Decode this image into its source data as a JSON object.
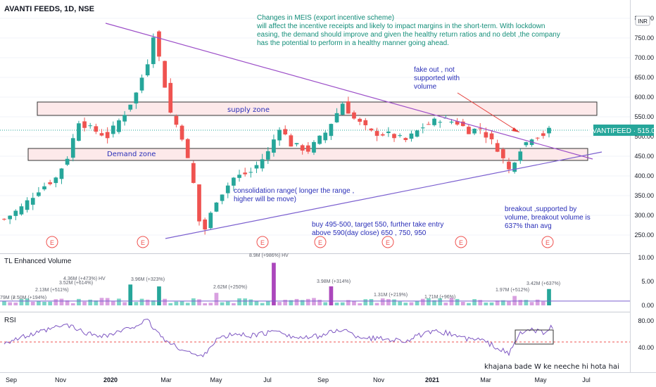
{
  "header": {
    "title": "AVANTI FEEDS, 1D, NSE",
    "currency": "INR"
  },
  "price_label": {
    "text": "AVANTIFEED · 515.00",
    "value": 515.0
  },
  "notes": {
    "meis": [
      "Changes in MEIS (export incentive scheme)",
      "will affect the incentive receipts and likely to impact margins in the short-term. With lockdown",
      "easing, the demand should improve and given the healthy return ratios and no debt ,the company",
      "has the potential to perform in a healthy manner going ahead."
    ],
    "fakeout": [
      "fake out , not",
      "supported with",
      "volume"
    ],
    "supply": "supply zone",
    "demand": "Demand zone",
    "consolidation": [
      "consolidation range( longer the range ,",
      "higher will be move)"
    ],
    "buy": [
      "buy 495-500, target 550, further take entry",
      "above 590(day close) 650 , 750, 950"
    ],
    "breakout": [
      "breakout ,supported by",
      "volume, breakout volume is",
      "637% than avg"
    ],
    "khajana": "khajana bade W ke neeche hi hota hai"
  },
  "earnings_marker": "E",
  "volume_panel": {
    "title": "TL Enhanced Volume",
    "labels": [
      "79M (+",
      "2.50M (+194%)",
      "2.13M (+511%)",
      "3.52M (+614%)",
      "4.36M (+473%) HV",
      "3.96M (+323%)",
      "2.62M (+250%)",
      "8.9M (+986%) HV",
      "3.98M (+314%)",
      "1.31M (+219%)",
      "1.71M (+96%)",
      "1.97M (+512%)",
      "3.42M (+637%)"
    ]
  },
  "rsi_panel": {
    "title": "RSI"
  },
  "chart_data": [
    {
      "type": "candlestick",
      "ylim": [
        220,
        810
      ],
      "y_ticks": [
        "800.00",
        "750.00",
        "700.00",
        "650.00",
        "600.00",
        "550.00",
        "500.00",
        "450.00",
        "400.00",
        "350.00",
        "300.00",
        "250.00"
      ],
      "x_ticks": [
        "Sep",
        "Nov",
        "2020",
        "Mar",
        "May",
        "Jul",
        "Sep",
        "Nov",
        "2021",
        "Mar",
        "May",
        "Jul"
      ],
      "close_path": [
        [
          0,
          290
        ],
        [
          3,
          320
        ],
        [
          6,
          365
        ],
        [
          9,
          395
        ],
        [
          11,
          448
        ],
        [
          13,
          540
        ],
        [
          15,
          520
        ],
        [
          18,
          500
        ],
        [
          21,
          560
        ],
        [
          23,
          610
        ],
        [
          25,
          690
        ],
        [
          26,
          760
        ],
        [
          27,
          700
        ],
        [
          29,
          560
        ],
        [
          31,
          500
        ],
        [
          33,
          380
        ],
        [
          34,
          285
        ],
        [
          35,
          265
        ],
        [
          37,
          340
        ],
        [
          40,
          395
        ],
        [
          43,
          410
        ],
        [
          46,
          460
        ],
        [
          48,
          525
        ],
        [
          50,
          480
        ],
        [
          53,
          465
        ],
        [
          56,
          510
        ],
        [
          59,
          585
        ],
        [
          61,
          545
        ],
        [
          64,
          510
        ],
        [
          67,
          505
        ],
        [
          70,
          490
        ],
        [
          73,
          525
        ],
        [
          76,
          545
        ],
        [
          79,
          535
        ],
        [
          81,
          515
        ],
        [
          83,
          520
        ],
        [
          86,
          470
        ],
        [
          88,
          415
        ],
        [
          90,
          470
        ],
        [
          92,
          500
        ],
        [
          94,
          505
        ],
        [
          95,
          515
        ]
      ],
      "n_candles": 96,
      "supply_zone": [
        555,
        585
      ],
      "demand_zone": [
        440,
        470
      ],
      "current_price": 515.0,
      "price_line_color": "#26a69a",
      "up_color": "#26a69a",
      "down_color": "#ef5350"
    },
    {
      "type": "bar",
      "name": "TL Enhanced Volume",
      "y_ticks": [
        "10.00",
        "5.00",
        "0.00"
      ],
      "ylim": [
        0,
        10
      ],
      "spikes": [
        [
          22,
          4.36
        ],
        [
          27,
          3.96
        ],
        [
          37,
          2.62
        ],
        [
          47,
          8.9
        ],
        [
          57,
          3.98
        ],
        [
          67,
          1.31
        ],
        [
          89,
          1.97
        ],
        [
          95,
          3.42
        ]
      ]
    },
    {
      "type": "line",
      "name": "RSI",
      "y_ticks": [
        "80.00",
        "40.00"
      ],
      "ylim": [
        20,
        90
      ],
      "reference_line": 50,
      "rsi_path": [
        [
          0,
          48
        ],
        [
          3,
          55
        ],
        [
          6,
          62
        ],
        [
          9,
          70
        ],
        [
          11,
          74
        ],
        [
          13,
          66
        ],
        [
          15,
          60
        ],
        [
          18,
          58
        ],
        [
          21,
          66
        ],
        [
          23,
          74
        ],
        [
          25,
          80
        ],
        [
          26,
          70
        ],
        [
          27,
          60
        ],
        [
          29,
          45
        ],
        [
          31,
          38
        ],
        [
          33,
          30
        ],
        [
          34,
          26
        ],
        [
          35,
          32
        ],
        [
          37,
          52
        ],
        [
          40,
          60
        ],
        [
          43,
          58
        ],
        [
          46,
          62
        ],
        [
          48,
          67
        ],
        [
          50,
          56
        ],
        [
          53,
          54
        ],
        [
          56,
          60
        ],
        [
          59,
          68
        ],
        [
          61,
          58
        ],
        [
          64,
          54
        ],
        [
          67,
          53
        ],
        [
          70,
          50
        ],
        [
          73,
          60
        ],
        [
          76,
          64
        ],
        [
          79,
          58
        ],
        [
          81,
          52
        ],
        [
          83,
          52
        ],
        [
          86,
          40
        ],
        [
          88,
          30
        ],
        [
          90,
          62
        ],
        [
          92,
          66
        ],
        [
          94,
          62
        ],
        [
          95,
          70
        ]
      ],
      "line_color": "#7e57c2"
    }
  ]
}
